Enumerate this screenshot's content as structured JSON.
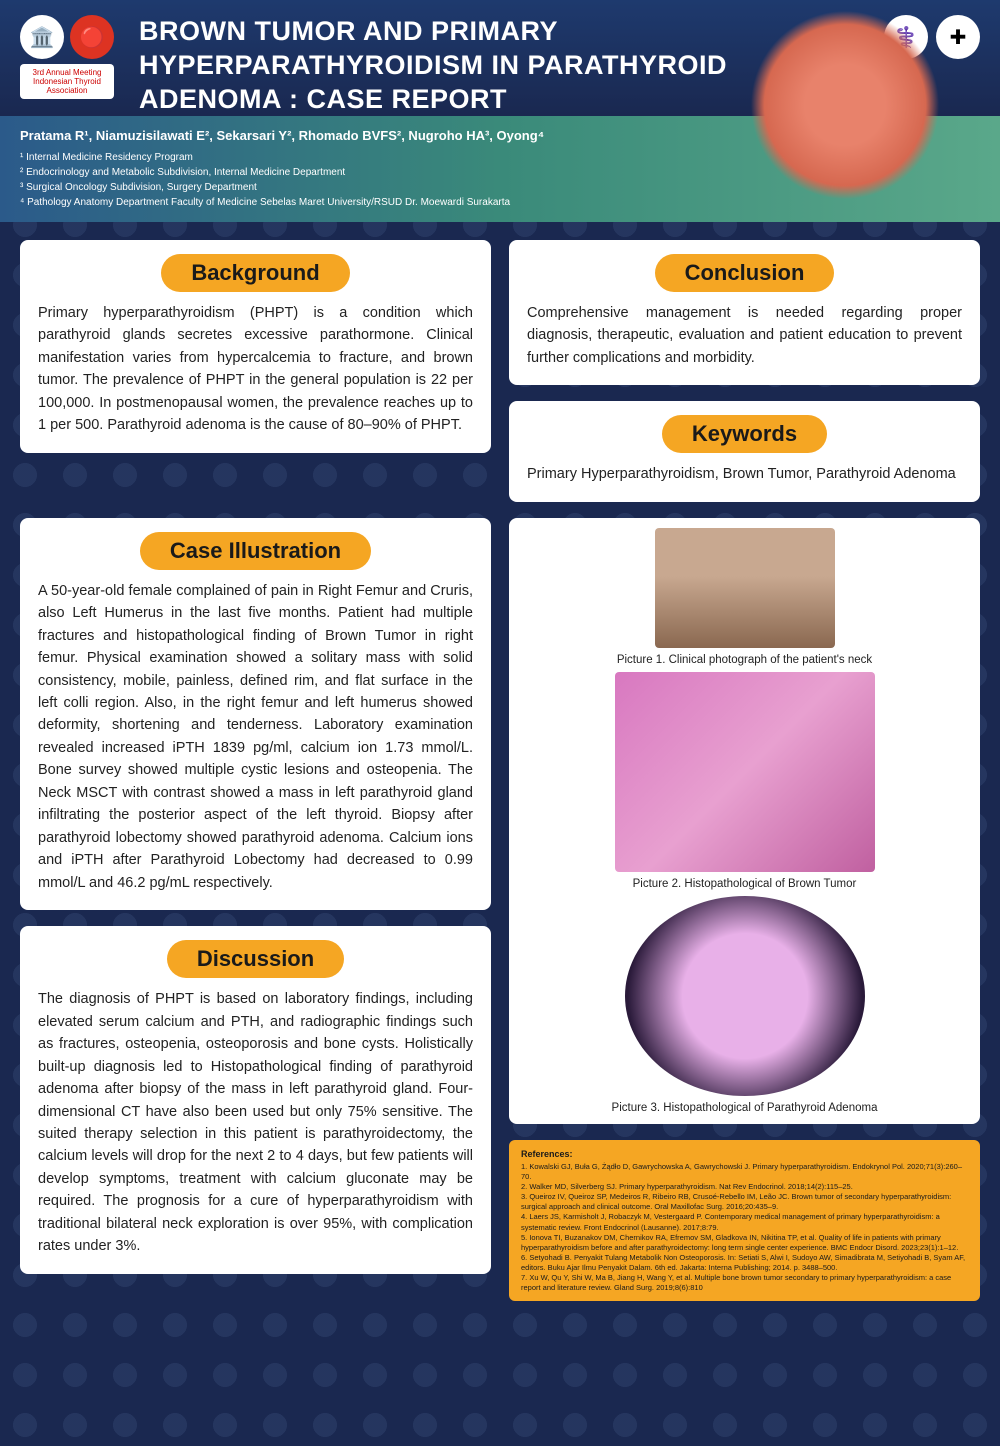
{
  "header": {
    "title": "BROWN TUMOR AND PRIMARY HYPERPARATHYROIDISM IN PARATHYROID ADENOMA : CASE REPORT",
    "meeting_badge": "3rd Annual Meeting Indonesian Thyroid Association"
  },
  "authors": {
    "names": "Pratama R¹, Niamuzisilawati E², Sekarsari Y², Rhomado BVFS², Nugroho HA³, Oyong⁴",
    "affil1": "¹ Internal Medicine Residency Program",
    "affil2": "² Endocrinology and Metabolic Subdivision, Internal Medicine Department",
    "affil3": "³ Surgical Oncology Subdivision, Surgery Department",
    "affil4": "⁴ Pathology Anatomy Department Faculty of Medicine Sebelas Maret University/RSUD Dr. Moewardi Surakarta"
  },
  "sections": {
    "background": {
      "title": "Background",
      "text": "Primary hyperparathyroidism (PHPT) is a condition which parathyroid glands secretes excessive parathormone. Clinical manifestation varies from hypercalcemia to fracture, and brown tumor. The prevalence of PHPT in the general population is 22 per 100,000. In postmenopausal women, the prevalence reaches up to 1 per 500. Parathyroid adenoma is the cause of 80–90% of PHPT."
    },
    "conclusion": {
      "title": "Conclusion",
      "text": "Comprehensive management is needed regarding proper diagnosis, therapeutic, evaluation and patient education to prevent further complications and morbidity."
    },
    "keywords": {
      "title": "Keywords",
      "text": "Primary Hyperparathyroidism, Brown Tumor, Parathyroid Adenoma"
    },
    "case": {
      "title": "Case Illustration",
      "text": "A 50-year-old female complained of pain in Right Femur and Cruris, also Left Humerus in the last five months. Patient had multiple fractures and histopathological finding of Brown Tumor in right femur. Physical examination showed a solitary mass with solid consistency, mobile, painless, defined rim, and flat surface in the left colli region. Also, in the right femur and left humerus showed deformity, shortening and tenderness. Laboratory examination revealed increased iPTH 1839 pg/ml, calcium ion 1.73 mmol/L. Bone survey showed multiple cystic lesions and osteopenia. The Neck MSCT with contrast showed a mass in left parathyroid gland infiltrating the posterior aspect of the left thyroid. Biopsy after parathyroid lobectomy showed parathyroid adenoma. Calcium ions and iPTH after Parathyroid Lobectomy had decreased to 0.99 mmol/L and 46.2 pg/mL respectively."
    },
    "discussion": {
      "title": "Discussion",
      "text": "The diagnosis of PHPT is based on laboratory findings, including elevated serum calcium and PTH, and radiographic findings such as fractures, osteopenia, osteoporosis and bone cysts. Holistically built-up diagnosis led to Histopathological finding of parathyroid adenoma after biopsy of the mass in left parathyroid gland. Four-dimensional CT have also been used but only 75% sensitive. The suited therapy selection in this patient is parathyroidectomy, the calcium levels will drop for the next 2 to 4 days, but few patients will develop symptoms, treatment with calcium gluconate may be required. The prognosis for a cure of hyperparathyroidism with traditional bilateral neck exploration is over 95%, with complication rates under 3%."
    }
  },
  "pictures": {
    "p1": "Picture 1. Clinical photograph of the patient's neck",
    "p2": "Picture 2. Histopathological of Brown Tumor",
    "p3": "Picture 3. Histopathological of Parathyroid Adenoma"
  },
  "references": {
    "title": "References:",
    "r1": "1. Kowalski GJ, Buła G, Żądło D, Gawrychowska A, Gawrychowski J. Primary hyperparathyroidism. Endokrynol Pol. 2020;71(3):260–70.",
    "r2": "2. Walker MD, Silverberg SJ. Primary hyperparathyroidism. Nat Rev Endocrinol. 2018;14(2):115–25.",
    "r3": "3. Queiroz IV, Queiroz SP, Medeiros R, Ribeiro RB, Crusoé-Rebello IM, Leão JC. Brown tumor of secondary hyperparathyroidism: surgical approach and clinical outcome. Oral Maxillofac Surg. 2016;20:435–9.",
    "r4": "4. Laers JS, Karmisholt J, Robaczyk M, Vestergaard P. Contemporary medical management of primary hyperparathyroidism: a systematic review. Front Endocrinol (Lausanne). 2017;8:79.",
    "r5": "5. Ionova TI, Buzanakov DM, Chernikov RA, Efremov SM, Gladkova IN, Nikitina TP, et al. Quality of life in patients with primary hyperparathyroidism before and after parathyroidectomy: long term single center experience. BMC Endocr Disord. 2023;23(1):1–12.",
    "r6": "6. Setyohadi B. Penyakit Tulang Metabolik Non Osteoporosis. In: Setiati S, Alwi I, Sudoyo AW, Simadibrata M, Setiyohadi B, Syam AF, editors. Buku Ajar Ilmu Penyakit Dalam. 6th ed. Jakarta: Interna Publishing; 2014. p. 3488–500.",
    "r7": "7. Xu W, Qu Y, Shi W, Ma B, Jiang H, Wang Y, et al. Multiple bone brown tumor secondary to primary hyperparathyroidism: a case report and literature review. Gland Surg. 2019;8(6):810"
  },
  "colors": {
    "bg": "#1a2850",
    "accent": "#f5a623",
    "gradient_start": "#2b5a8a",
    "gradient_end": "#5aa88a"
  }
}
